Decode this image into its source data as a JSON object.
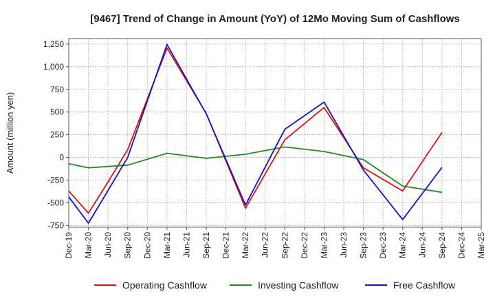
{
  "chart_data": {
    "type": "line",
    "title": "[9467]  Trend of Change in Amount (YoY) of 12Mo Moving Sum of Cashflows",
    "xlabel": "",
    "ylabel": "Amount (million yen)",
    "categories": [
      "Dec-19",
      "Mar-20",
      "Jun-20",
      "Sep-20",
      "Dec-20",
      "Mar-21",
      "Jun-21",
      "Sep-21",
      "Dec-21",
      "Mar-22",
      "Jun-22",
      "Sep-22",
      "Dec-22",
      "Mar-23",
      "Jun-23",
      "Sep-23",
      "Dec-23",
      "Mar-24",
      "Jun-24",
      "Sep-24",
      "Dec-24",
      "Mar-25"
    ],
    "ylim": [
      -770,
      1310
    ],
    "yticks": [
      -750,
      -500,
      -250,
      0,
      250,
      500,
      750,
      1000,
      1250
    ],
    "ytick_labels": [
      "-750",
      "-500",
      "-250",
      "0",
      "250",
      "500",
      "750",
      "1,000",
      "1,250"
    ],
    "grid": true,
    "legend_position": "bottom",
    "series": [
      {
        "name": "Operating Cashflow",
        "color": "#dd1111",
        "values": [
          -370,
          -615,
          -270,
          85,
          null,
          1205,
          null,
          485,
          null,
          -560,
          null,
          195,
          null,
          550,
          null,
          -115,
          null,
          -370,
          null,
          275,
          null,
          null
        ]
      },
      {
        "name": "Investing Cashflow",
        "color": "#228822",
        "values": [
          -70,
          -115,
          null,
          -85,
          null,
          45,
          null,
          -10,
          null,
          35,
          null,
          115,
          null,
          65,
          null,
          -25,
          null,
          -315,
          null,
          -385,
          null,
          null
        ]
      },
      {
        "name": "Free Cashflow",
        "color": "#1111cc",
        "values": [
          -435,
          -725,
          -365,
          0,
          null,
          1245,
          null,
          480,
          null,
          -525,
          null,
          310,
          null,
          610,
          null,
          -140,
          null,
          -685,
          null,
          -110,
          null,
          null
        ]
      }
    ]
  }
}
